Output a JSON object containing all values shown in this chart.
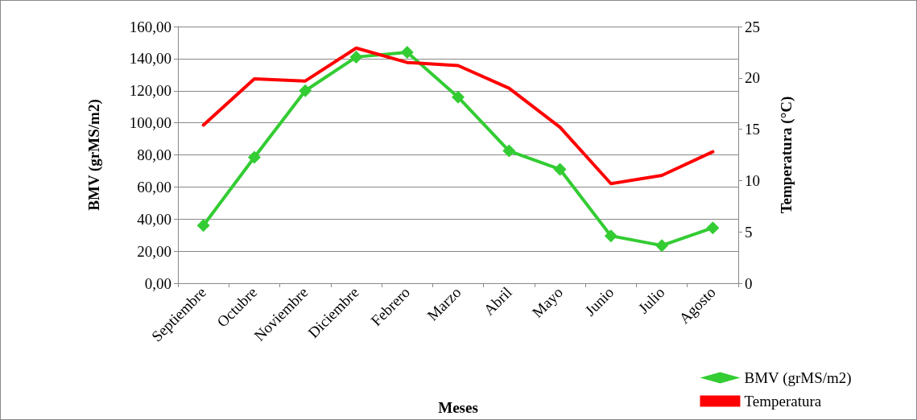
{
  "chart_data": {
    "type": "line",
    "xlabel": "Meses",
    "ylabel": "BMV (grMS/m2)",
    "y2label": "Temperatura (°C)",
    "categories": [
      "Septiembre",
      "Octubre",
      "Noviembre",
      "Diciembre",
      "Febrero",
      "Marzo",
      "Abril",
      "Mayo",
      "Junio",
      "Julio",
      "Agosto"
    ],
    "series": [
      {
        "name": "BMV (grMS/m2)",
        "color": "#33cc33",
        "marker": "diamond",
        "values": [
          36,
          78.5,
          120,
          141,
          144,
          116,
          82.5,
          71,
          29.5,
          23.5,
          34.5
        ]
      },
      {
        "name": "Temperatura",
        "color": "#ff0000",
        "marker": "none",
        "axis": "y2",
        "values": [
          15.4,
          19.9,
          19.7,
          22.9,
          21.5,
          21.2,
          19.0,
          15.2,
          9.7,
          10.5,
          12.8
        ]
      }
    ],
    "ylim": [
      0,
      160
    ],
    "yticks": [
      {
        "value": 0,
        "label": "0,00"
      },
      {
        "value": 20,
        "label": "20,00"
      },
      {
        "value": 40,
        "label": "40,00"
      },
      {
        "value": 60,
        "label": "60,00"
      },
      {
        "value": 80,
        "label": "80,00"
      },
      {
        "value": 100,
        "label": "100,00"
      },
      {
        "value": 120,
        "label": "120,00"
      },
      {
        "value": 140,
        "label": "140,00"
      },
      {
        "value": 160,
        "label": "160,00"
      }
    ],
    "y2lim": [
      0,
      25
    ],
    "y2ticks": [
      0,
      5,
      10,
      15,
      20,
      25
    ],
    "grid": "y",
    "legend": "bottom right",
    "line_style": "solid"
  }
}
